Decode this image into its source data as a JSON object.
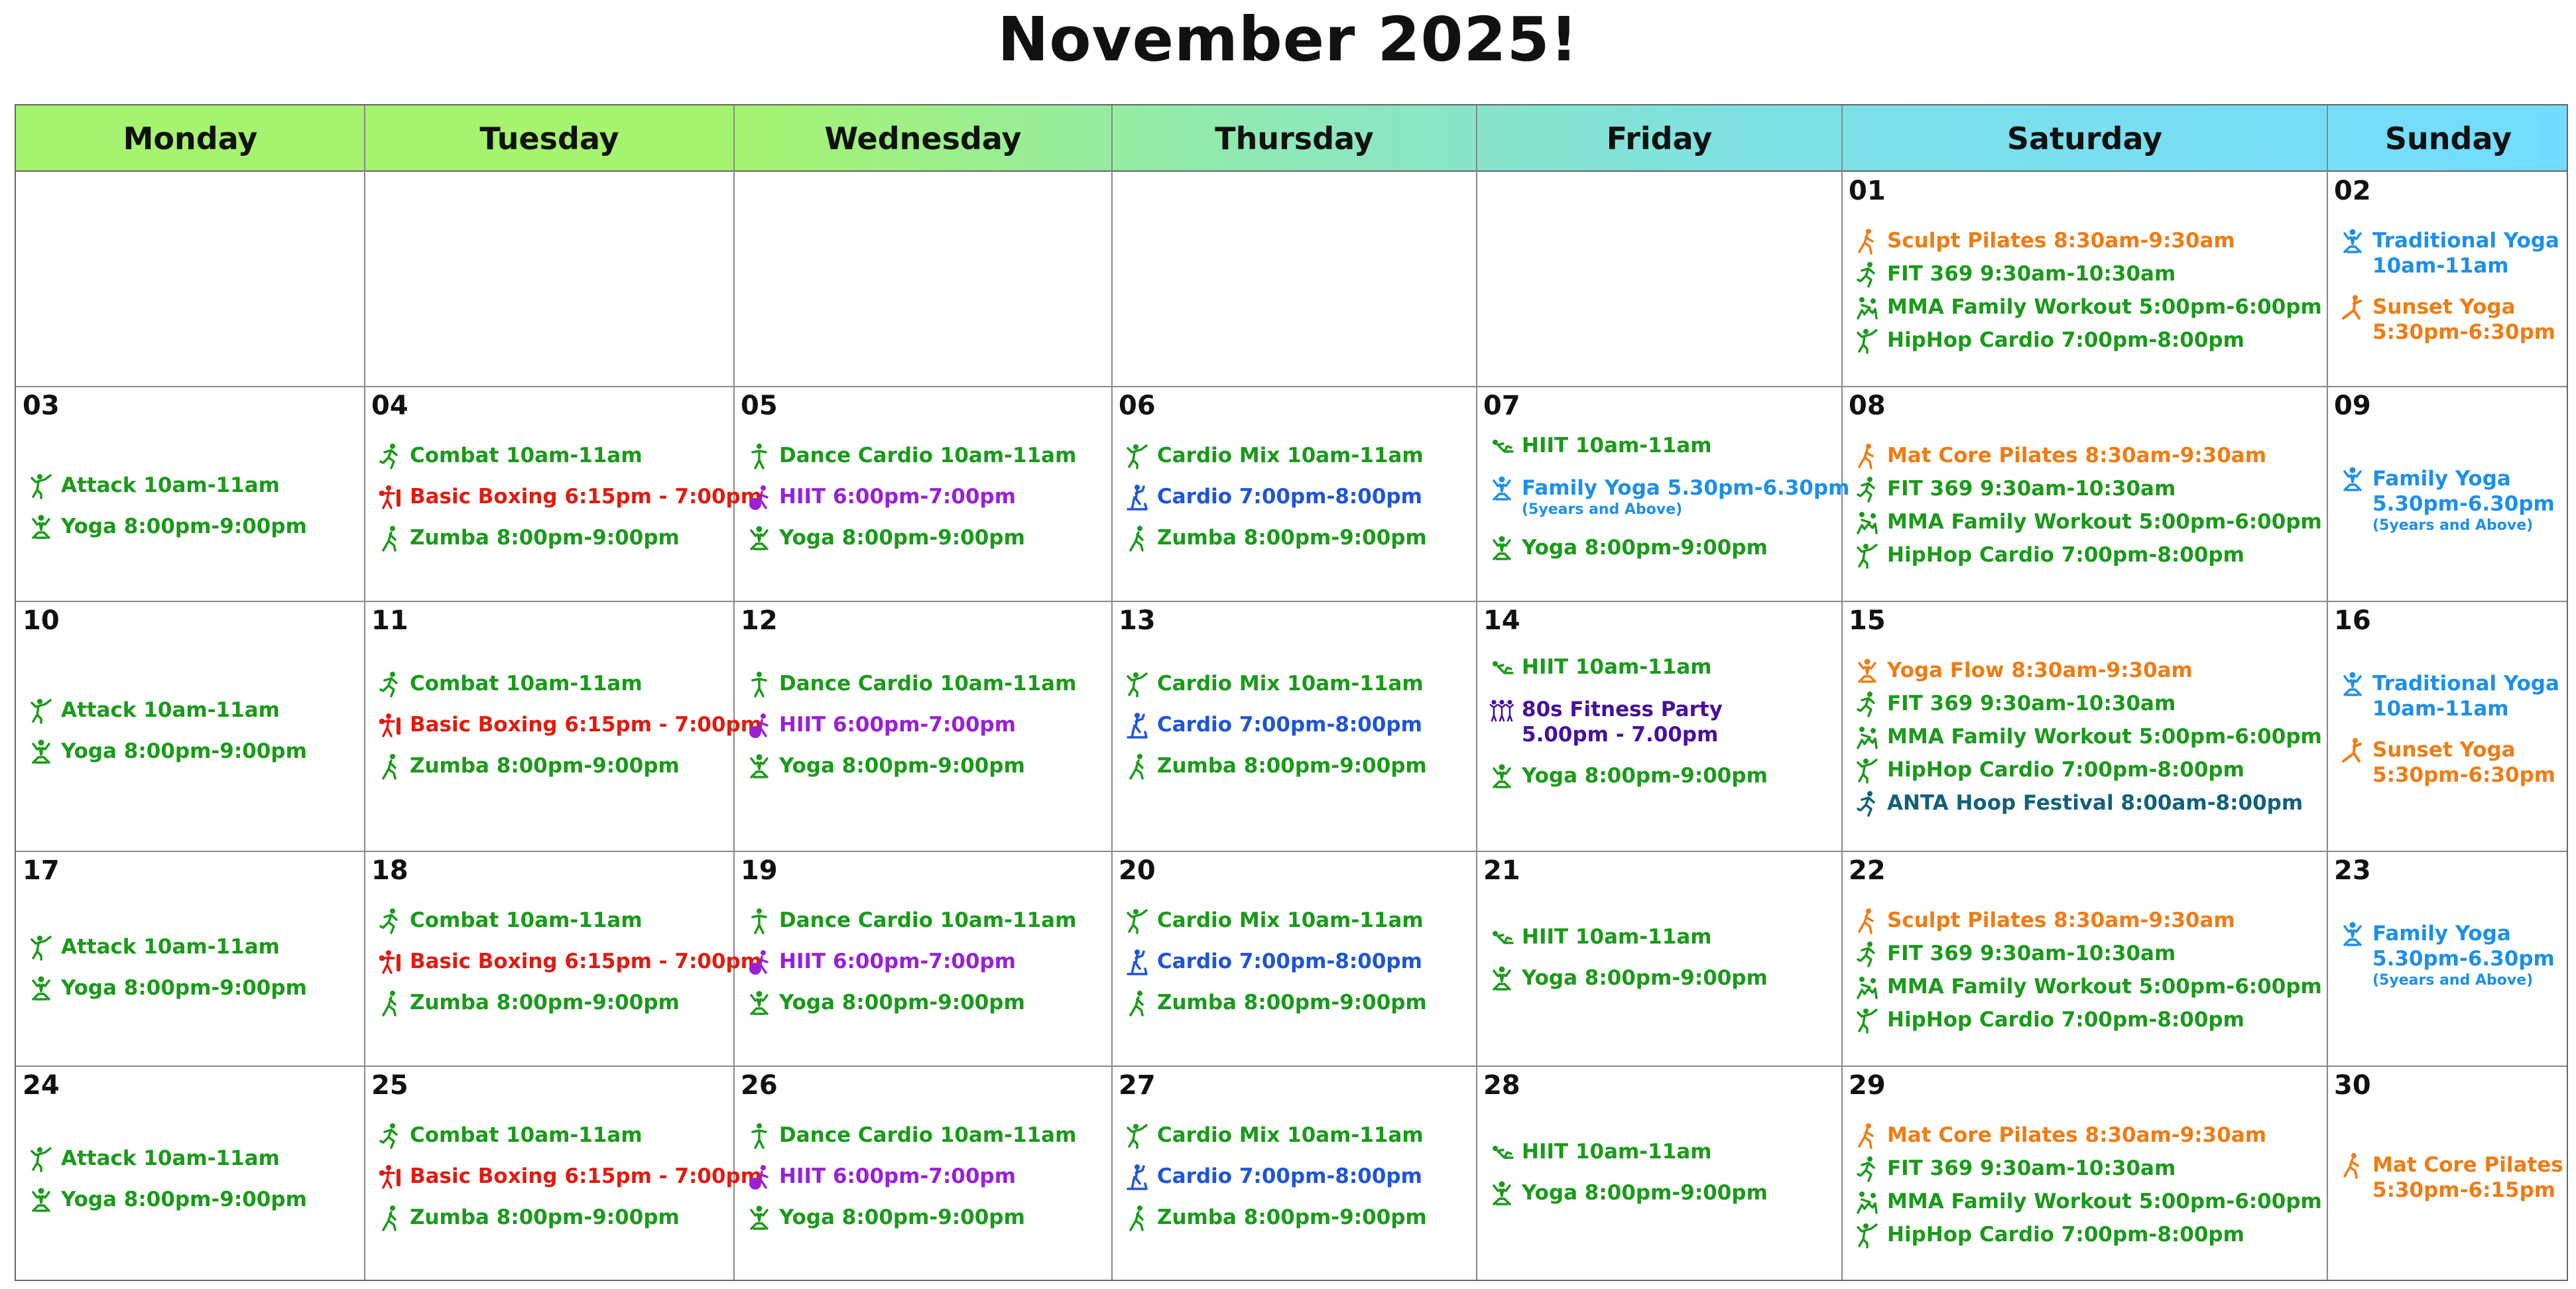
{
  "title": "November 2025!",
  "days": [
    "Monday",
    "Tuesday",
    "Wednesday",
    "Thursday",
    "Friday",
    "Saturday",
    "Sunday"
  ],
  "weeks": [
    [
      {
        "date": "",
        "events": []
      },
      {
        "date": "",
        "events": []
      },
      {
        "date": "",
        "events": []
      },
      {
        "date": "",
        "events": []
      },
      {
        "date": "",
        "events": []
      },
      {
        "date": "01",
        "events": [
          {
            "text": "Sculpt Pilates 8:30am-9:30am",
            "color": "orange",
            "icon": "pilates-icon"
          },
          {
            "text": "FIT 369 9:30am-10:30am",
            "color": "green",
            "icon": "run-icon"
          },
          {
            "text": "MMA Family Workout 5:00pm-6:00pm",
            "color": "green",
            "icon": "mma-icon"
          },
          {
            "text": "HipHop Cardio 7:00pm-8:00pm",
            "color": "green",
            "icon": "dance-icon"
          }
        ]
      },
      {
        "date": "02",
        "events": [
          {
            "text": "Traditional Yoga",
            "sub": "10am-11am",
            "color": "lblue",
            "icon": "yoga-icon"
          },
          {
            "text": "Sunset Yoga",
            "sub": "5:30pm-6:30pm",
            "color": "orange",
            "icon": "yoga-pose-icon"
          }
        ]
      }
    ],
    [
      {
        "date": "03",
        "events": [
          {
            "text": "Attack 10am-11am",
            "color": "green",
            "icon": "dance-icon"
          },
          {
            "text": "Yoga 8:00pm-9:00pm",
            "color": "green",
            "icon": "yoga-icon"
          }
        ]
      },
      {
        "date": "04",
        "events": [
          {
            "text": "Combat 10am-11am",
            "color": "green",
            "icon": "run-icon"
          },
          {
            "text": "Basic Boxing 6:15pm - 7:00pm",
            "color": "red",
            "icon": "boxing-icon"
          },
          {
            "text": "Zumba 8:00pm-9:00pm",
            "color": "green",
            "icon": "walk-icon"
          }
        ]
      },
      {
        "date": "05",
        "events": [
          {
            "text": "Dance Cardio 10am-11am",
            "color": "green",
            "icon": "stand-icon"
          },
          {
            "text": "HIIT 6:00pm-7:00pm",
            "color": "purple",
            "icon": "ball-icon"
          },
          {
            "text": "Yoga 8:00pm-9:00pm",
            "color": "green",
            "icon": "yoga-icon"
          }
        ]
      },
      {
        "date": "06",
        "events": [
          {
            "text": "Cardio Mix 10am-11am",
            "color": "green",
            "icon": "dance-icon"
          },
          {
            "text": "Cardio 7:00pm-8:00pm",
            "color": "blue",
            "icon": "elliptical-icon"
          },
          {
            "text": "Zumba 8:00pm-9:00pm",
            "color": "green",
            "icon": "walk-icon"
          }
        ]
      },
      {
        "date": "07",
        "events": [
          {
            "text": "HIIT 10am-11am",
            "color": "green",
            "icon": "situp-icon"
          },
          {
            "text": "Family Yoga 5.30pm-6.30pm",
            "note": "(5years and Above)",
            "color": "lblue",
            "icon": "yoga-icon"
          },
          {
            "text": "Yoga 8:00pm-9:00pm",
            "color": "green",
            "icon": "yoga-icon"
          }
        ]
      },
      {
        "date": "08",
        "events": [
          {
            "text": "Mat Core Pilates 8:30am-9:30am",
            "color": "orange",
            "icon": "pilates-icon"
          },
          {
            "text": "FIT 369 9:30am-10:30am",
            "color": "green",
            "icon": "run-icon"
          },
          {
            "text": "MMA Family Workout 5:00pm-6:00pm",
            "color": "green",
            "icon": "mma-icon"
          },
          {
            "text": "HipHop Cardio 7:00pm-8:00pm",
            "color": "green",
            "icon": "dance-icon"
          }
        ]
      },
      {
        "date": "09",
        "events": [
          {
            "text": "Family Yoga",
            "sub": "5.30pm-6.30pm",
            "note": "(5years and Above)",
            "color": "lblue",
            "icon": "yoga-icon"
          }
        ]
      }
    ],
    [
      {
        "date": "10",
        "events": [
          {
            "text": "Attack 10am-11am",
            "color": "green",
            "icon": "dance-icon"
          },
          {
            "text": "Yoga 8:00pm-9:00pm",
            "color": "green",
            "icon": "yoga-icon"
          }
        ]
      },
      {
        "date": "11",
        "events": [
          {
            "text": "Combat 10am-11am",
            "color": "green",
            "icon": "run-icon"
          },
          {
            "text": "Basic Boxing 6:15pm - 7:00pm",
            "color": "red",
            "icon": "boxing-icon"
          },
          {
            "text": "Zumba 8:00pm-9:00pm",
            "color": "green",
            "icon": "walk-icon"
          }
        ]
      },
      {
        "date": "12",
        "events": [
          {
            "text": "Dance Cardio 10am-11am",
            "color": "green",
            "icon": "stand-icon"
          },
          {
            "text": "HIIT 6:00pm-7:00pm",
            "color": "purple",
            "icon": "ball-icon"
          },
          {
            "text": "Yoga 8:00pm-9:00pm",
            "color": "green",
            "icon": "yoga-icon"
          }
        ]
      },
      {
        "date": "13",
        "events": [
          {
            "text": "Cardio Mix 10am-11am",
            "color": "green",
            "icon": "dance-icon"
          },
          {
            "text": "Cardio 7:00pm-8:00pm",
            "color": "blue",
            "icon": "elliptical-icon"
          },
          {
            "text": "Zumba 8:00pm-9:00pm",
            "color": "green",
            "icon": "walk-icon"
          }
        ]
      },
      {
        "date": "14",
        "events": [
          {
            "text": "HIIT 10am-11am",
            "color": "green",
            "icon": "situp-icon"
          },
          {
            "text": "80s Fitness Party",
            "sub": "5.00pm - 7.00pm",
            "color": "navy",
            "icon": "group-icon"
          },
          {
            "text": "Yoga 8:00pm-9:00pm",
            "color": "green",
            "icon": "yoga-icon"
          }
        ]
      },
      {
        "date": "15",
        "events": [
          {
            "text": "Yoga Flow 8:30am-9:30am",
            "color": "orange",
            "icon": "yoga-icon"
          },
          {
            "text": "FIT 369 9:30am-10:30am",
            "color": "green",
            "icon": "run-icon"
          },
          {
            "text": "MMA Family Workout 5:00pm-6:00pm",
            "color": "green",
            "icon": "mma-icon"
          },
          {
            "text": "HipHop Cardio 7:00pm-8:00pm",
            "color": "green",
            "icon": "dance-icon"
          },
          {
            "text": "ANTA Hoop Festival 8:00am-8:00pm",
            "color": "teal",
            "icon": "run-icon"
          }
        ]
      },
      {
        "date": "16",
        "events": [
          {
            "text": "Traditional Yoga",
            "sub": "10am-11am",
            "color": "lblue",
            "icon": "yoga-icon"
          },
          {
            "text": "Sunset Yoga",
            "sub": "5:30pm-6:30pm",
            "color": "orange",
            "icon": "yoga-pose-icon"
          }
        ]
      }
    ],
    [
      {
        "date": "17",
        "events": [
          {
            "text": "Attack 10am-11am",
            "color": "green",
            "icon": "dance-icon"
          },
          {
            "text": "Yoga 8:00pm-9:00pm",
            "color": "green",
            "icon": "yoga-icon"
          }
        ]
      },
      {
        "date": "18",
        "events": [
          {
            "text": "Combat 10am-11am",
            "color": "green",
            "icon": "run-icon"
          },
          {
            "text": "Basic Boxing 6:15pm - 7:00pm",
            "color": "red",
            "icon": "boxing-icon"
          },
          {
            "text": "Zumba 8:00pm-9:00pm",
            "color": "green",
            "icon": "walk-icon"
          }
        ]
      },
      {
        "date": "19",
        "events": [
          {
            "text": "Dance Cardio 10am-11am",
            "color": "green",
            "icon": "stand-icon"
          },
          {
            "text": "HIIT 6:00pm-7:00pm",
            "color": "purple",
            "icon": "ball-icon"
          },
          {
            "text": "Yoga 8:00pm-9:00pm",
            "color": "green",
            "icon": "yoga-icon"
          }
        ]
      },
      {
        "date": "20",
        "events": [
          {
            "text": "Cardio Mix 10am-11am",
            "color": "green",
            "icon": "dance-icon"
          },
          {
            "text": "Cardio 7:00pm-8:00pm",
            "color": "blue",
            "icon": "elliptical-icon"
          },
          {
            "text": "Zumba 8:00pm-9:00pm",
            "color": "green",
            "icon": "walk-icon"
          }
        ]
      },
      {
        "date": "21",
        "events": [
          {
            "text": "HIIT 10am-11am",
            "color": "green",
            "icon": "situp-icon"
          },
          {
            "text": "Yoga 8:00pm-9:00pm",
            "color": "green",
            "icon": "yoga-icon"
          }
        ]
      },
      {
        "date": "22",
        "events": [
          {
            "text": "Sculpt Pilates 8:30am-9:30am",
            "color": "orange",
            "icon": "pilates-icon"
          },
          {
            "text": "FIT 369 9:30am-10:30am",
            "color": "green",
            "icon": "run-icon"
          },
          {
            "text": "MMA Family Workout 5:00pm-6:00pm",
            "color": "green",
            "icon": "mma-icon"
          },
          {
            "text": "HipHop Cardio 7:00pm-8:00pm",
            "color": "green",
            "icon": "dance-icon"
          }
        ]
      },
      {
        "date": "23",
        "events": [
          {
            "text": "Family Yoga",
            "sub": "5.30pm-6.30pm",
            "note": "(5years and Above)",
            "color": "lblue",
            "icon": "yoga-icon"
          }
        ]
      }
    ],
    [
      {
        "date": "24",
        "events": [
          {
            "text": "Attack 10am-11am",
            "color": "green",
            "icon": "dance-icon"
          },
          {
            "text": "Yoga 8:00pm-9:00pm",
            "color": "green",
            "icon": "yoga-icon"
          }
        ]
      },
      {
        "date": "25",
        "events": [
          {
            "text": "Combat 10am-11am",
            "color": "green",
            "icon": "run-icon"
          },
          {
            "text": "Basic Boxing 6:15pm - 7:00pm",
            "color": "red",
            "icon": "boxing-icon"
          },
          {
            "text": "Zumba 8:00pm-9:00pm",
            "color": "green",
            "icon": "walk-icon"
          }
        ]
      },
      {
        "date": "26",
        "events": [
          {
            "text": "Dance Cardio 10am-11am",
            "color": "green",
            "icon": "stand-icon"
          },
          {
            "text": "HIIT 6:00pm-7:00pm",
            "color": "purple",
            "icon": "ball-icon"
          },
          {
            "text": "Yoga 8:00pm-9:00pm",
            "color": "green",
            "icon": "yoga-icon"
          }
        ]
      },
      {
        "date": "27",
        "events": [
          {
            "text": "Cardio Mix 10am-11am",
            "color": "green",
            "icon": "dance-icon"
          },
          {
            "text": "Cardio 7:00pm-8:00pm",
            "color": "blue",
            "icon": "elliptical-icon"
          },
          {
            "text": "Zumba 8:00pm-9:00pm",
            "color": "green",
            "icon": "walk-icon"
          }
        ]
      },
      {
        "date": "28",
        "events": [
          {
            "text": "HIIT 10am-11am",
            "color": "green",
            "icon": "situp-icon"
          },
          {
            "text": "Yoga 8:00pm-9:00pm",
            "color": "green",
            "icon": "yoga-icon"
          }
        ]
      },
      {
        "date": "29",
        "events": [
          {
            "text": "Mat Core Pilates 8:30am-9:30am",
            "color": "orange",
            "icon": "pilates-icon"
          },
          {
            "text": "FIT 369 9:30am-10:30am",
            "color": "green",
            "icon": "run-icon"
          },
          {
            "text": "MMA Family Workout 5:00pm-6:00pm",
            "color": "green",
            "icon": "mma-icon"
          },
          {
            "text": "HipHop Cardio 7:00pm-8:00pm",
            "color": "green",
            "icon": "dance-icon"
          }
        ]
      },
      {
        "date": "30",
        "events": [
          {
            "text": "Mat Core Pilates",
            "sub": "5:30pm-6:15pm",
            "color": "orange",
            "icon": "pilates-icon"
          }
        ]
      }
    ]
  ]
}
